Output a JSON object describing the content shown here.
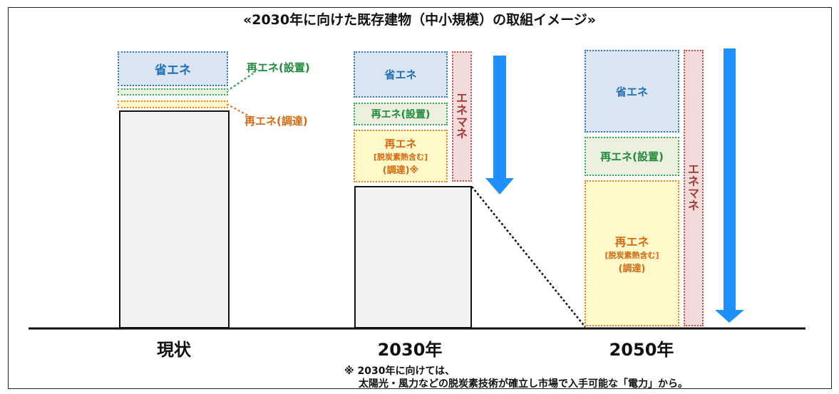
{
  "title": "«2030年に向けた既存建物（中小規模）の取組イメージ»",
  "labels": {
    "energy_saving": "省エネ",
    "re_onsite": "再エネ(設置)",
    "re_procured": "再エネ(調達)",
    "re_main": "再エネ",
    "re_decarbonized_heat": "[脱炭素熱含む]",
    "procured_paren": "(調達)",
    "procured_paren_note": "(調達)※",
    "enemane": [
      "エ",
      "ネ",
      "マ",
      "ネ"
    ]
  },
  "categories": [
    "現状",
    "2030年",
    "2050年"
  ],
  "note": {
    "line1": "※ 2030年に向けては、",
    "line2": "太陽光・風力などの脱炭素技術が確立し市場で入手可能な「電力」から。"
  },
  "colors": {
    "energy_saving": "#2e75b6",
    "re_onsite": "#33a85a",
    "re_procured": "#ed7d31",
    "enemane": "#c0504d",
    "arrow": "#1e90ff"
  }
}
